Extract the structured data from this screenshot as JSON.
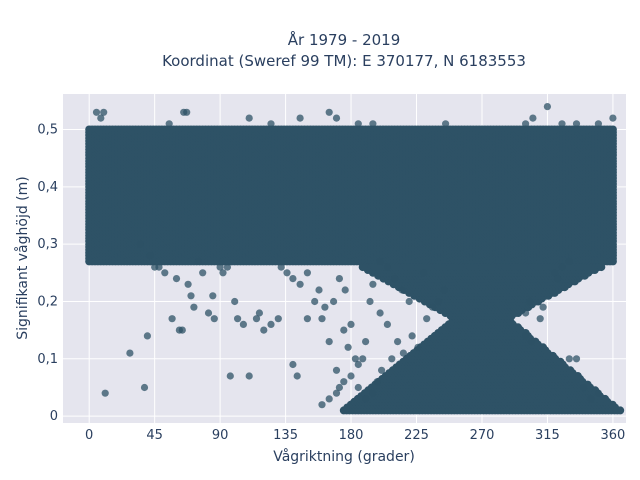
{
  "chart_data": {
    "type": "scatter",
    "title": "År 1979 - 2019",
    "subtitle": "Koordinat (Sweref 99 TM): E 370177, N 6183553",
    "xlabel": "Vågriktning (grader)",
    "ylabel": "Signifikant våghöjd (m)",
    "xlim": [
      -18,
      369
    ],
    "ylim": [
      -0.012,
      0.562
    ],
    "x_ticks": [
      0,
      45,
      90,
      135,
      180,
      225,
      270,
      315,
      360
    ],
    "x_tick_labels": [
      "0",
      "45",
      "90",
      "135",
      "180",
      "225",
      "270",
      "315",
      "360"
    ],
    "y_ticks": [
      0,
      0.1,
      0.2,
      0.3,
      0.4,
      0.5
    ],
    "y_tick_labels": [
      "0",
      "0,1",
      "0,2",
      "0,3",
      "0,4",
      "0,5"
    ],
    "grid": true,
    "marker_color": "#2e5266",
    "plot_background": "#e5e5ee",
    "dense_band": {
      "x_range": [
        0,
        360
      ],
      "y_range": [
        0.27,
        0.5
      ],
      "x_step": 2,
      "y_step": 0.005
    },
    "dense_hourglass": {
      "x_center": 270,
      "y_range": [
        0.01,
        0.26
      ],
      "y_step": 0.005,
      "x_step": 2,
      "half_width_at_top": 82,
      "half_width_at_waist": 18,
      "waist_y": 0.17,
      "half_width_at_bottom": 95
    },
    "points": [
      [
        5,
        0.53
      ],
      [
        8,
        0.52
      ],
      [
        10,
        0.53
      ],
      [
        55,
        0.51
      ],
      [
        65,
        0.53
      ],
      [
        67,
        0.53
      ],
      [
        110,
        0.52
      ],
      [
        125,
        0.51
      ],
      [
        145,
        0.52
      ],
      [
        165,
        0.53
      ],
      [
        170,
        0.52
      ],
      [
        185,
        0.51
      ],
      [
        195,
        0.51
      ],
      [
        245,
        0.51
      ],
      [
        300,
        0.51
      ],
      [
        305,
        0.52
      ],
      [
        315,
        0.54
      ],
      [
        325,
        0.51
      ],
      [
        335,
        0.51
      ],
      [
        350,
        0.51
      ],
      [
        360,
        0.52
      ],
      [
        11,
        0.04
      ],
      [
        28,
        0.11
      ],
      [
        38,
        0.05
      ],
      [
        40,
        0.14
      ],
      [
        57,
        0.17
      ],
      [
        62,
        0.15
      ],
      [
        64,
        0.15
      ],
      [
        68,
        0.23
      ],
      [
        70,
        0.21
      ],
      [
        72,
        0.19
      ],
      [
        85,
        0.21
      ],
      [
        90,
        0.26
      ],
      [
        97,
        0.07
      ],
      [
        110,
        0.07
      ],
      [
        120,
        0.15
      ],
      [
        125,
        0.16
      ],
      [
        130,
        0.17
      ],
      [
        140,
        0.09
      ],
      [
        143,
        0.07
      ],
      [
        150,
        0.17
      ],
      [
        160,
        0.17
      ],
      [
        165,
        0.13
      ],
      [
        170,
        0.08
      ],
      [
        172,
        0.05
      ],
      [
        175,
        0.15
      ],
      [
        178,
        0.12
      ],
      [
        180,
        0.16
      ],
      [
        183,
        0.1
      ],
      [
        185,
        0.09
      ],
      [
        188,
        0.1
      ],
      [
        190,
        0.13
      ],
      [
        193,
        0.2
      ],
      [
        195,
        0.23
      ],
      [
        200,
        0.18
      ],
      [
        205,
        0.16
      ],
      [
        82,
        0.18
      ],
      [
        86,
        0.17
      ],
      [
        100,
        0.2
      ],
      [
        102,
        0.17
      ],
      [
        106,
        0.16
      ],
      [
        115,
        0.17
      ],
      [
        117,
        0.18
      ],
      [
        48,
        0.26
      ],
      [
        52,
        0.25
      ],
      [
        60,
        0.24
      ],
      [
        75,
        0.27
      ],
      [
        78,
        0.25
      ],
      [
        92,
        0.25
      ],
      [
        95,
        0.26
      ],
      [
        132,
        0.26
      ],
      [
        136,
        0.25
      ],
      [
        140,
        0.24
      ],
      [
        145,
        0.23
      ],
      [
        150,
        0.25
      ],
      [
        155,
        0.2
      ],
      [
        158,
        0.22
      ],
      [
        162,
        0.19
      ],
      [
        168,
        0.2
      ],
      [
        172,
        0.24
      ],
      [
        176,
        0.22
      ],
      [
        35,
        0.3
      ],
      [
        42,
        0.28
      ],
      [
        45,
        0.26
      ],
      [
        200,
        0.27
      ],
      [
        205,
        0.26
      ],
      [
        210,
        0.24
      ],
      [
        215,
        0.22
      ],
      [
        220,
        0.2
      ],
      [
        230,
        0.25
      ],
      [
        340,
        0.05
      ],
      [
        345,
        0.03
      ],
      [
        350,
        0.04
      ],
      [
        320,
        0.25
      ],
      [
        322,
        0.24
      ],
      [
        325,
        0.26
      ],
      [
        330,
        0.27
      ],
      [
        300,
        0.18
      ],
      [
        303,
        0.2
      ],
      [
        310,
        0.17
      ],
      [
        312,
        0.19
      ],
      [
        300,
        0.14
      ],
      [
        304,
        0.13
      ],
      [
        330,
        0.1
      ],
      [
        335,
        0.1
      ],
      [
        160,
        0.02
      ],
      [
        165,
        0.03
      ],
      [
        170,
        0.04
      ],
      [
        175,
        0.06
      ],
      [
        180,
        0.07
      ],
      [
        185,
        0.05
      ],
      [
        190,
        0.03
      ],
      [
        195,
        0.04
      ],
      [
        198,
        0.06
      ],
      [
        201,
        0.08
      ],
      [
        208,
        0.1
      ],
      [
        212,
        0.13
      ],
      [
        216,
        0.11
      ],
      [
        222,
        0.14
      ],
      [
        226,
        0.12
      ],
      [
        232,
        0.17
      ],
      [
        236,
        0.19
      ],
      [
        240,
        0.2
      ],
      [
        244,
        0.22
      ]
    ]
  }
}
